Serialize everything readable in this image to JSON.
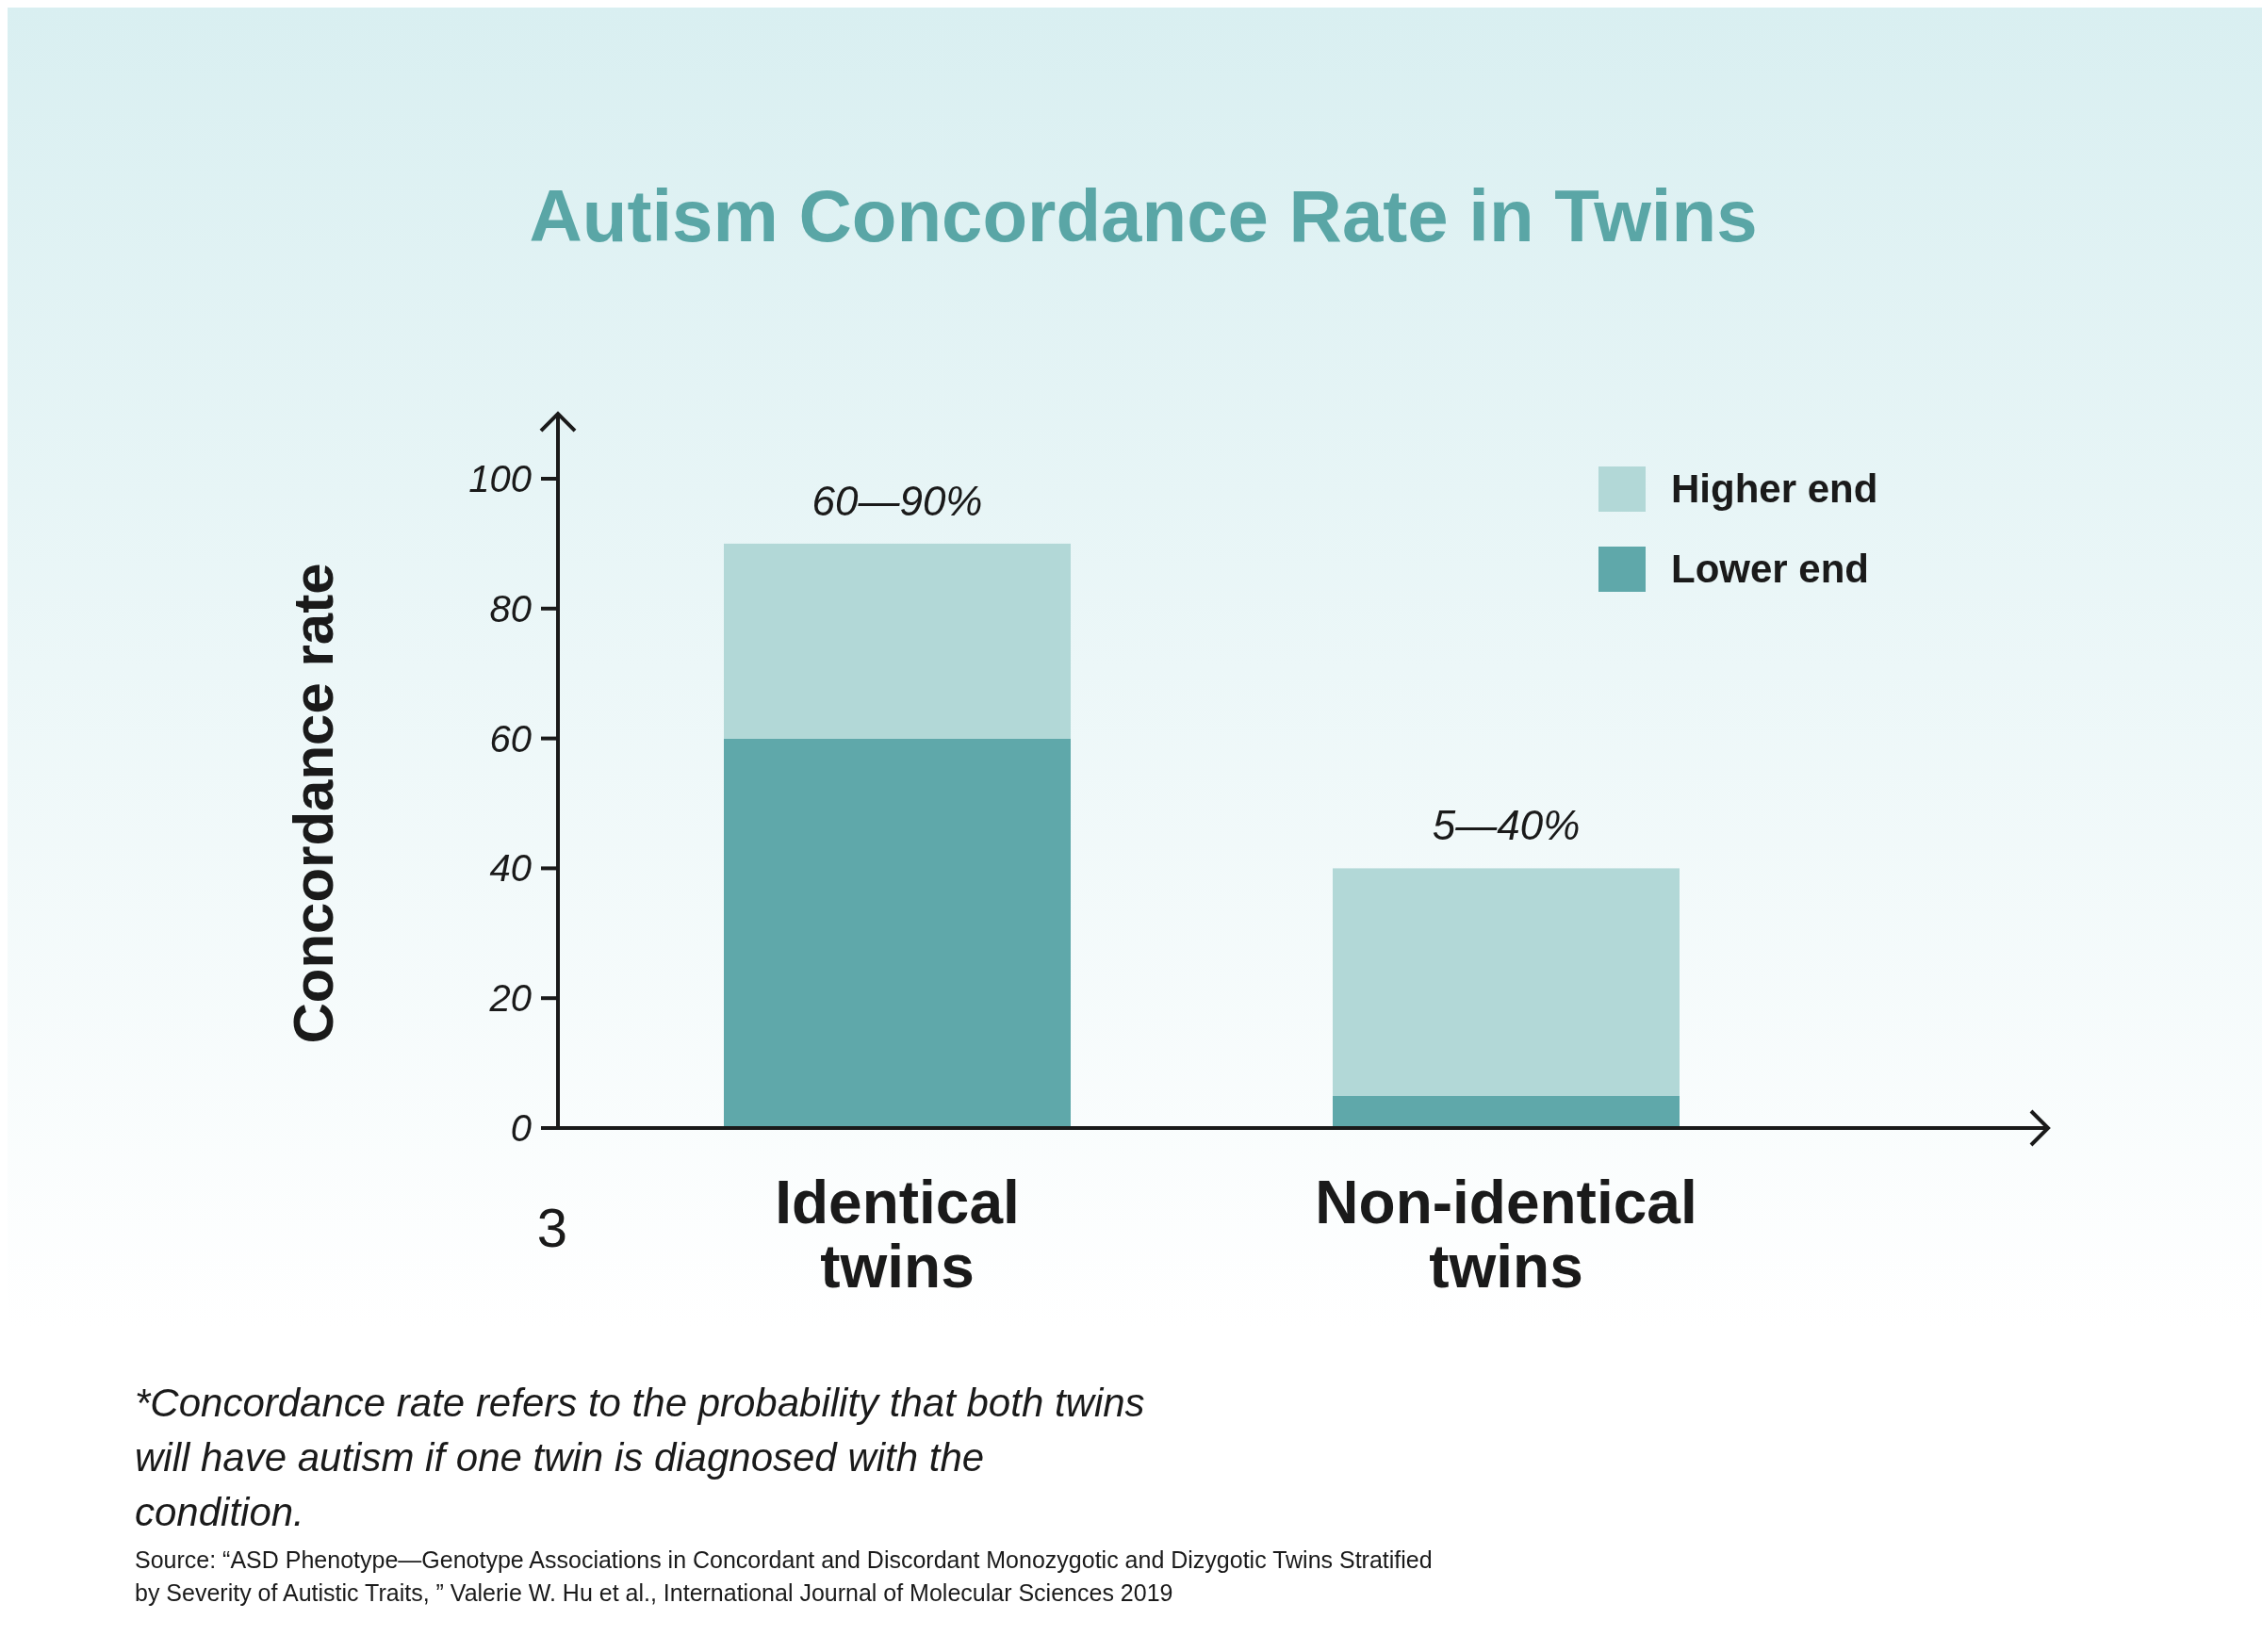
{
  "chart_data": {
    "type": "bar",
    "title": "Autism Concordance Rate in Twins",
    "ylabel": "Concordance rate",
    "categories": [
      "Identical twins",
      "Non-identical twins"
    ],
    "series": [
      {
        "name": "Lower end",
        "color": "#5fa8aa",
        "values": [
          60,
          5
        ]
      },
      {
        "name": "Higher end",
        "color": "#b2d8d7",
        "values": [
          30,
          35
        ]
      }
    ],
    "stacked": true,
    "ylim": [
      0,
      110
    ],
    "yticks": [
      0,
      20,
      40,
      60,
      80,
      100
    ],
    "grid": false,
    "legend": "top right",
    "annotations": [
      {
        "text": "60—90%",
        "x": "Identical twins",
        "y": 90
      },
      {
        "text": "5—40%",
        "x": "Non-identical twins",
        "y": 40
      },
      "3",
      "*Concordance rate refers to the probability that both twins will have autism if one twin is diagnosed with the condition.",
      "Source: “ASD Phenotype—Genotype Associations in Concordant and Discordant Monozygotic and Dizygotic Twins Stratified by Severity of Autistic Traits, ” Valerie W. Hu et al., International Journal of Molecular Sciences 2019"
    ]
  }
}
